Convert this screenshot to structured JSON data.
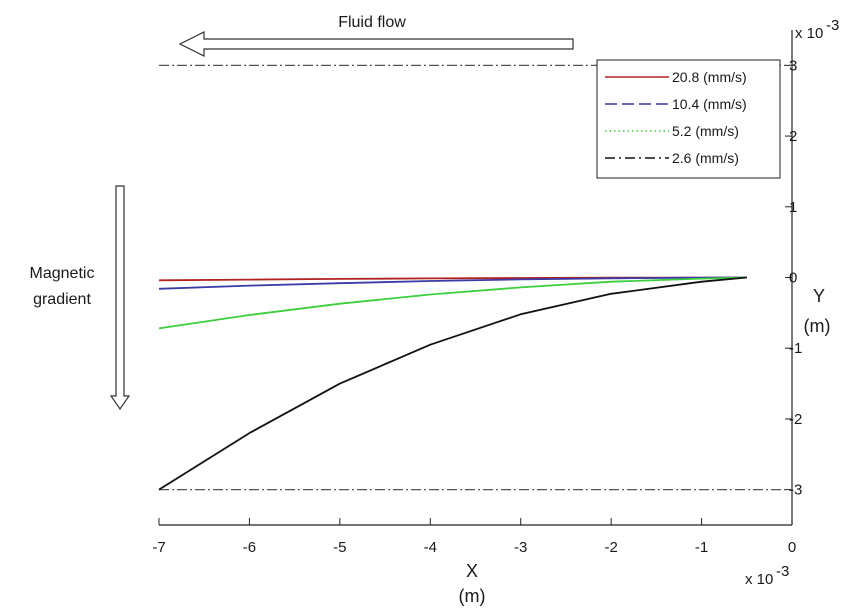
{
  "chart_data": {
    "type": "line",
    "x_range": [
      -7,
      0
    ],
    "y_range": [
      -3.5,
      3.5
    ],
    "x_ticks": [
      -7,
      -6,
      -5,
      -4,
      -3,
      -2,
      -1,
      0
    ],
    "y_ticks": [
      -3,
      -2,
      -1,
      0,
      1,
      2,
      3
    ],
    "x_tick_labels": [
      "-7",
      "-6",
      "-5",
      "-4",
      "-3",
      "-2",
      "-1",
      "0"
    ],
    "y_tick_labels": [
      "-3",
      "-2",
      "-1",
      "0",
      "1",
      "2",
      "3"
    ],
    "x_exponent_label": "x 10",
    "x_exponent_power": "-3",
    "y_exponent_label": "x 10",
    "y_exponent_power": "-3",
    "xlabel": "X",
    "xlabel_unit": "(m)",
    "ylabel": "Y",
    "ylabel_unit": "(m)",
    "grid": false,
    "legend_position": "top-right",
    "boundaries": [
      {
        "y": 3,
        "color": "#555555"
      },
      {
        "y": -3,
        "color": "#555555"
      }
    ],
    "series": [
      {
        "name": "20.8 (mm/s)",
        "color": "#b22222",
        "dash": "solid",
        "legend_dash": "solid",
        "x": [
          -7,
          -6,
          -5,
          -4,
          -3,
          -2,
          -1,
          -0.5
        ],
        "y": [
          -0.04,
          -0.03,
          -0.02,
          -0.013,
          -0.007,
          -0.003,
          -0.001,
          0
        ]
      },
      {
        "name": "10.4 (mm/s)",
        "color": "#3a3aa8",
        "dash": "solid",
        "legend_dash": "dashed",
        "x": [
          -7,
          -6,
          -5,
          -4,
          -3,
          -2,
          -1,
          -0.5
        ],
        "y": [
          -0.16,
          -0.115,
          -0.08,
          -0.05,
          -0.027,
          -0.012,
          -0.003,
          0
        ]
      },
      {
        "name": "5.2 (mm/s)",
        "color": "#3ccf3c",
        "dash": "solid",
        "legend_dash": "dotted",
        "x": [
          -7,
          -6,
          -5,
          -4,
          -3,
          -2,
          -1,
          -0.5
        ],
        "y": [
          -0.72,
          -0.53,
          -0.37,
          -0.24,
          -0.14,
          -0.06,
          -0.015,
          0
        ]
      },
      {
        "name": "2.6 (mm/s)",
        "color": "#111111",
        "dash": "solid",
        "legend_dash": "dashdot",
        "x": [
          -7,
          -6,
          -5,
          -4,
          -3,
          -2,
          -1,
          -0.5
        ],
        "y": [
          -3.0,
          -2.2,
          -1.5,
          -0.95,
          -0.52,
          -0.23,
          -0.06,
          0
        ]
      }
    ],
    "annotations": [
      {
        "text": "Fluid flow",
        "arrow": "left"
      },
      {
        "text_lines": [
          "Magnetic",
          "gradient"
        ],
        "arrow": "down"
      }
    ]
  }
}
